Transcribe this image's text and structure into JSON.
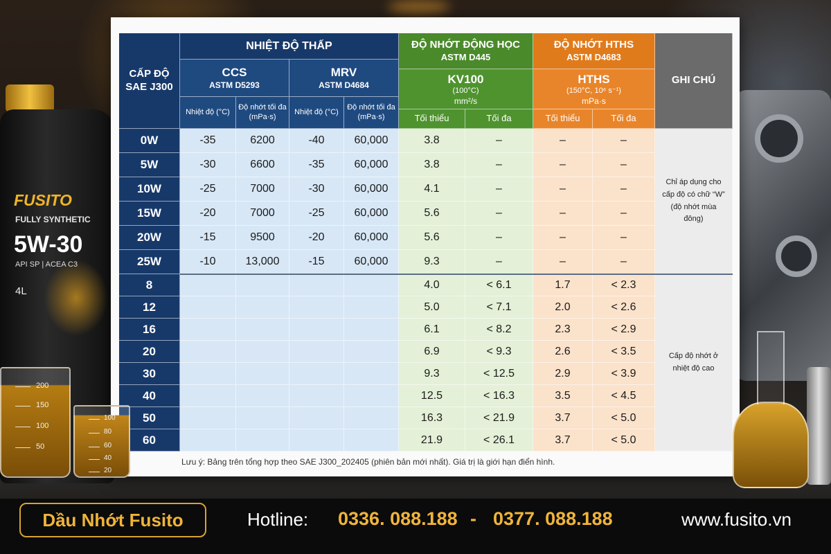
{
  "table": {
    "grade_header": [
      "CẤP ĐỘ",
      "SAE J300"
    ],
    "low_temp": {
      "title": "NHIỆT ĐỘ THẤP",
      "ccs": {
        "name": "CCS",
        "standard": "ASTM D5293",
        "columns": [
          [
            "Nhiệt độ (°C)"
          ],
          [
            "Độ nhớt tối đa",
            "(mPa·s)"
          ]
        ]
      },
      "mrv": {
        "name": "MRV",
        "standard": "ASTM D4684",
        "columns": [
          [
            "Nhiệt độ (°C)"
          ],
          [
            "Độ nhớt tối đa",
            "(mPa·s)"
          ]
        ]
      }
    },
    "kinematic": {
      "title": "ĐỘ NHỚT ĐỘNG HỌC",
      "standard": "ASTM D445",
      "name": "KV100",
      "condition": "(100°C)",
      "unit": "mm²/s",
      "columns": [
        "Tối thiểu",
        "Tối đa"
      ]
    },
    "hths": {
      "title": "ĐỘ NHỚT HTHS",
      "standard": "ASTM D4683",
      "name": "HTHS",
      "condition": "(150°C, 10⁶ s⁻¹)",
      "unit": "mPa·s",
      "columns": [
        "Tối thiểu",
        "Tối đa"
      ]
    },
    "notes_header": "GHI CHÚ",
    "winter_rows": [
      [
        "0W",
        "-35",
        "6200",
        "-40",
        "60,000",
        "3.8",
        "–",
        "–",
        "–"
      ],
      [
        "5W",
        "-30",
        "6600",
        "-35",
        "60,000",
        "3.8",
        "–",
        "–",
        "–"
      ],
      [
        "10W",
        "-25",
        "7000",
        "-30",
        "60,000",
        "4.1",
        "–",
        "–",
        "–"
      ],
      [
        "15W",
        "-20",
        "7000",
        "-25",
        "60,000",
        "5.6",
        "–",
        "–",
        "–"
      ],
      [
        "20W",
        "-15",
        "9500",
        "-20",
        "60,000",
        "5.6",
        "–",
        "–",
        "–"
      ],
      [
        "25W",
        "-10",
        "13,000",
        "-15",
        "60,000",
        "9.3",
        "–",
        "–",
        "–"
      ]
    ],
    "summer_rows": [
      [
        "8",
        "4.0",
        "< 6.1",
        "1.7",
        "< 2.3"
      ],
      [
        "12",
        "5.0",
        "< 7.1",
        "2.0",
        "< 2.6"
      ],
      [
        "16",
        "6.1",
        "< 8.2",
        "2.3",
        "< 2.9"
      ],
      [
        "20",
        "6.9",
        "< 9.3",
        "2.6",
        "< 3.5"
      ],
      [
        "30",
        "9.3",
        "< 12.5",
        "2.9",
        "< 3.9"
      ],
      [
        "40",
        "12.5",
        "< 16.3",
        "3.5",
        "< 4.5"
      ],
      [
        "50",
        "16.3",
        "< 21.9",
        "3.7",
        "< 5.0"
      ],
      [
        "60",
        "21.9",
        "< 26.1",
        "3.7",
        "< 5.0"
      ]
    ],
    "winter_note": "Chỉ áp dụng cho cấp độ có chữ “W” (độ nhớt mùa đông)",
    "summer_note": "Cấp độ nhớt ở nhiệt độ cao"
  },
  "footnote": "Lưu ý: Bảng trên tổng hợp theo SAE J300_202405 (phiên bản mới nhất). Giá trị là giới hạn điển hình.",
  "footer": {
    "brand": "Dầu Nhớt Fusito",
    "hotline_label": "Hotline:",
    "phones": [
      "0336. 088.188",
      "0377. 088.188"
    ],
    "separator": "-",
    "website": "www.fusito.vn"
  },
  "product": {
    "brand": "FUSITO",
    "line": "FULLY SYNTHETIC",
    "grade": "5W-30",
    "spec": "API SP | ACEA C3",
    "volume": "4L"
  },
  "beakers": [
    [
      "200",
      "150",
      "100",
      "50"
    ],
    [
      "100",
      "80",
      "60",
      "40",
      "20"
    ]
  ]
}
